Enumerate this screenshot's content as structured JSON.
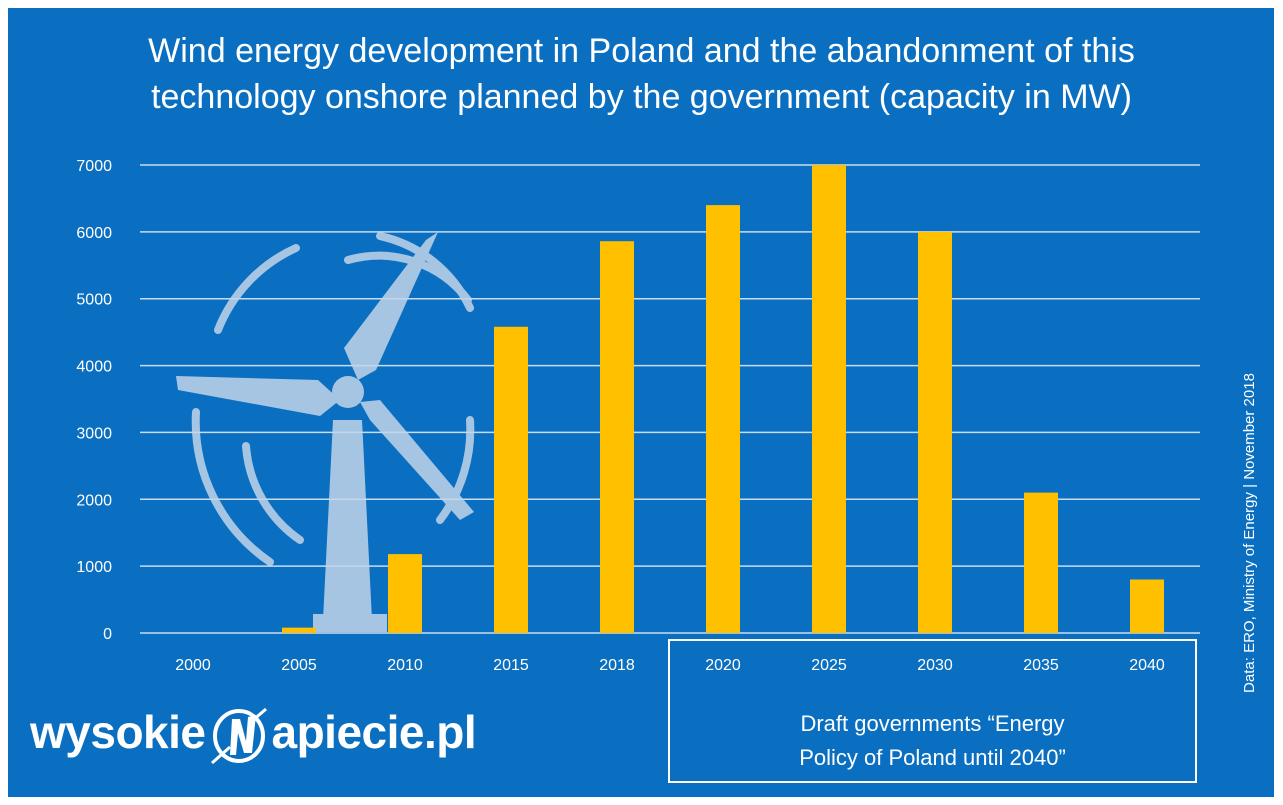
{
  "title_line1": "Wind energy development in Poland and the abandonment of this",
  "title_line2": "technology onshore planned by the government (capacity in MW)",
  "source_text": "Data: ERO, Ministry of Energy  |  November 2018",
  "draft_note_line1": "Draft governments “Energy",
  "draft_note_line2": "Policy of Poland until 2040”",
  "logo": {
    "left": "wysokie",
    "right": "apiecie.pl",
    "mark_icon": "lightning-n-icon"
  },
  "colors": {
    "background": "#0a6fc0",
    "bar": "#ffc000",
    "gridline": "#c9dcef",
    "text": "#ffffff",
    "turbine": "#c2d5ea"
  },
  "chart_data": {
    "type": "bar",
    "title": "Wind energy development in Poland and the abandonment of this technology onshore planned by the government (capacity in MW)",
    "categories": [
      "2000",
      "2005",
      "2010",
      "2015",
      "2018",
      "2020",
      "2025",
      "2030",
      "2035",
      "2040"
    ],
    "values": [
      0,
      80,
      1180,
      4580,
      5860,
      6400,
      7000,
      6000,
      2100,
      800
    ],
    "ylim": [
      0,
      7000
    ],
    "yticks": [
      0,
      1000,
      2000,
      3000,
      4000,
      5000,
      6000,
      7000
    ],
    "ytick_labels": [
      "0",
      "1000",
      "2000",
      "3000",
      "4000",
      "5000",
      "6000",
      "7000"
    ],
    "grid": true,
    "legend": "none"
  }
}
